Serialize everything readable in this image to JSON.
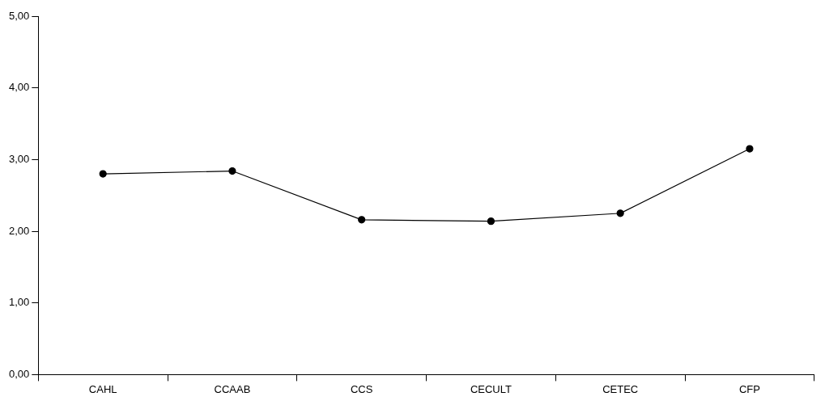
{
  "chart_data": {
    "type": "line",
    "categories": [
      "CAHL",
      "CCAAB",
      "CCS",
      "CECULT",
      "CETEC",
      "CFP"
    ],
    "series": [
      {
        "color": "#000000",
        "values": [
          2.8,
          2.84,
          2.16,
          2.14,
          2.25,
          3.15
        ]
      }
    ],
    "ylim": [
      0,
      5
    ],
    "yticks": [
      {
        "value": 0,
        "label": "0,00"
      },
      {
        "value": 1,
        "label": "1,00"
      },
      {
        "value": 2,
        "label": "2,00"
      },
      {
        "value": 3,
        "label": "3,00"
      },
      {
        "value": 4,
        "label": "4,00"
      },
      {
        "value": 5,
        "label": "5,00"
      }
    ],
    "grid": false,
    "legend": false,
    "marker": "circle",
    "line_style": "solid"
  }
}
